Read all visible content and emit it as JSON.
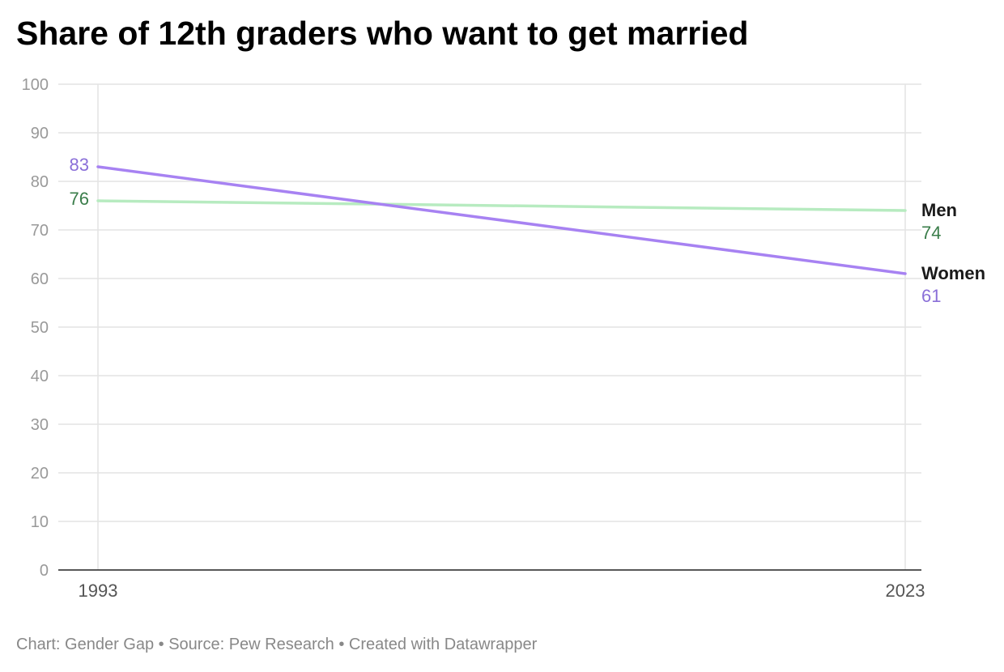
{
  "chart_data": {
    "type": "line",
    "title": "Share of 12th graders who want to get married",
    "xlabel": "",
    "ylabel": "",
    "x": [
      "1993",
      "2023"
    ],
    "ylim": [
      0,
      100
    ],
    "yticks": [
      0,
      10,
      20,
      30,
      40,
      50,
      60,
      70,
      80,
      90,
      100
    ],
    "grid": true,
    "legend": "direct labels at line ends (right)",
    "series": [
      {
        "name": "Men",
        "values": [
          76,
          74
        ],
        "color": "#b7ebc0",
        "label_color": "#3a7d4a"
      },
      {
        "name": "Women",
        "values": [
          83,
          61
        ],
        "color": "#a782f2",
        "label_color": "#8a6fd8"
      }
    ]
  },
  "footer": {
    "credit": "Chart: Gender Gap",
    "source": "Source: Pew Research",
    "tool": "Created with Datawrapper",
    "separator": " • "
  },
  "colors": {
    "grid": "#e3e3e3",
    "axis_text": "#999999",
    "baseline": "#222222",
    "series_name": "#1a1a1a"
  }
}
